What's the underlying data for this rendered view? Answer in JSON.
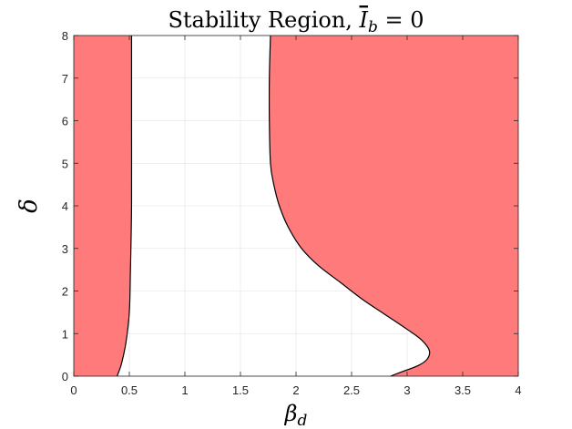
{
  "chart_data": {
    "type": "area",
    "title": "Stability Region, Ī_b = 0",
    "title_parts": {
      "prefix": "Stability Region, ",
      "symbol": "I",
      "subscript": "b",
      "suffix": " = 0"
    },
    "xlabel": "β",
    "xlabel_sub": "d",
    "ylabel": "δ",
    "xlim": [
      0,
      4
    ],
    "ylim": [
      0,
      8
    ],
    "xticks": [
      0,
      0.5,
      1,
      1.5,
      2,
      2.5,
      3,
      3.5,
      4
    ],
    "xtick_labels": [
      "0",
      "0.5",
      "1",
      "1.5",
      "2",
      "2.5",
      "3",
      "3.5",
      "4"
    ],
    "yticks": [
      0,
      1,
      2,
      3,
      4,
      5,
      6,
      7,
      8
    ],
    "ytick_labels": [
      "0",
      "1",
      "2",
      "3",
      "4",
      "5",
      "6",
      "7",
      "8"
    ],
    "grid": true,
    "fill_color": "#ff7b7b",
    "edge_color": "#000000",
    "boundaries": [
      {
        "name": "left boundary",
        "points": [
          [
            0.39,
            0
          ],
          [
            0.43,
            0.3
          ],
          [
            0.47,
            0.8
          ],
          [
            0.5,
            1.5
          ],
          [
            0.51,
            2.5
          ],
          [
            0.52,
            4
          ],
          [
            0.52,
            6
          ],
          [
            0.52,
            8
          ]
        ]
      },
      {
        "name": "right boundary",
        "points": [
          [
            1.77,
            8
          ],
          [
            1.76,
            7
          ],
          [
            1.76,
            6
          ],
          [
            1.77,
            5
          ],
          [
            1.8,
            4.5
          ],
          [
            1.85,
            4
          ],
          [
            1.93,
            3.5
          ],
          [
            2.05,
            3
          ],
          [
            2.2,
            2.6
          ],
          [
            2.4,
            2.2
          ],
          [
            2.6,
            1.8
          ],
          [
            2.8,
            1.45
          ],
          [
            3.0,
            1.1
          ],
          [
            3.13,
            0.85
          ],
          [
            3.2,
            0.6
          ],
          [
            3.18,
            0.4
          ],
          [
            3.1,
            0.25
          ],
          [
            2.95,
            0.1
          ],
          [
            2.85,
            0
          ]
        ]
      }
    ]
  }
}
